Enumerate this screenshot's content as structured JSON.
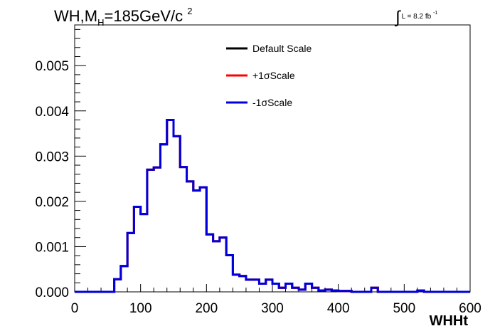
{
  "title": {
    "main": "WH,M",
    "sub": "H",
    "rest": "=185GeV/c",
    "sup": "2"
  },
  "lumi": {
    "text": "L = 8.2 fb",
    "sup": "-1"
  },
  "chart_data": {
    "type": "line",
    "style": "step-histogram",
    "xlabel": "WHHt",
    "ylabel": "",
    "xlim": [
      0,
      600
    ],
    "ylim": [
      0,
      0.0059
    ],
    "x_ticks": [
      "0",
      "100",
      "200",
      "300",
      "400",
      "500",
      "600"
    ],
    "y_ticks": [
      "0.000",
      "0.001",
      "0.002",
      "0.003",
      "0.004",
      "0.005"
    ],
    "bin_width": 10,
    "x_bin_edges_start": 0,
    "legend_position": "top-center",
    "series": [
      {
        "name": "Default Scale",
        "color": "#000000"
      },
      {
        "name": "+1σScale",
        "color": "#ff0000"
      },
      {
        "name": "-1σScale",
        "color": "#0000dd"
      }
    ],
    "values": [
      0,
      0,
      0,
      0,
      0,
      0,
      0.00028,
      0.00057,
      0.0013,
      0.00188,
      0.00172,
      0.0027,
      0.00275,
      0.00326,
      0.0038,
      0.00344,
      0.00276,
      0.00244,
      0.00224,
      0.00231,
      0.00127,
      0.00112,
      0.0012,
      0.00081,
      0.00038,
      0.00035,
      0.00027,
      0.00027,
      0.00018,
      0.00027,
      0.00018,
      9e-05,
      0.00018,
      9e-05,
      5e-05,
      0.00018,
      9e-05,
      3e-05,
      5e-05,
      3e-05,
      2e-05,
      2e-05,
      0.0,
      0.0,
      0.0,
      9e-05,
      0.0,
      0.0,
      0.0,
      0.0,
      0.0,
      0.0,
      3e-05,
      0.0,
      0.0,
      0.0,
      0.0,
      0.0,
      0.0,
      0.0
    ]
  }
}
